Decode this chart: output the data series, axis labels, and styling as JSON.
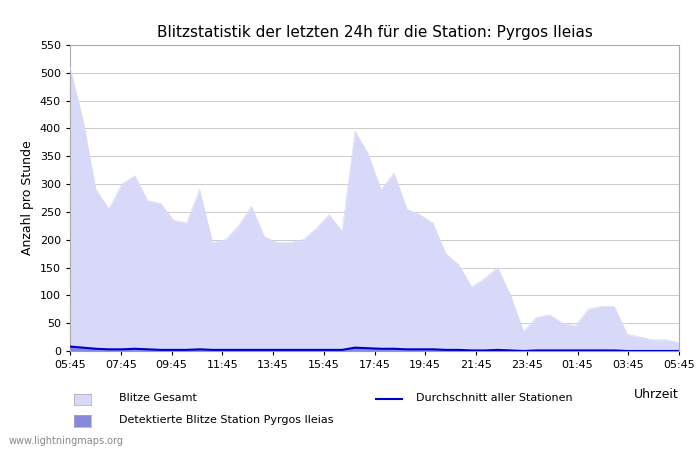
{
  "title": "Blitzstatistik der letzten 24h für die Station: Pyrgos Ileias",
  "xlabel": "Uhrzeit",
  "ylabel": "Anzahl pro Stunde",
  "ylim": [
    0,
    550
  ],
  "yticks": [
    0,
    50,
    100,
    150,
    200,
    250,
    300,
    350,
    400,
    450,
    500,
    550
  ],
  "xtick_labels": [
    "05:45",
    "07:45",
    "09:45",
    "11:45",
    "13:45",
    "15:45",
    "17:45",
    "19:45",
    "21:45",
    "23:45",
    "01:45",
    "03:45",
    "05:45"
  ],
  "background_color": "#ffffff",
  "grid_color": "#cccccc",
  "fill_gesamt_color": "#d8d8f8",
  "fill_station_color": "#8888dd",
  "line_avg_color": "#0000cc",
  "watermark": "www.lightningmaps.org",
  "legend": {
    "blitze_gesamt": "Blitze Gesamt",
    "detektierte": "Detektierte Blitze Station Pyrgos Ileias",
    "durchschnitt": "Durchschnitt aller Stationen"
  },
  "x_indices": [
    0,
    1,
    2,
    3,
    4,
    5,
    6,
    7,
    8,
    9,
    10,
    11,
    12,
    13,
    14,
    15,
    16,
    17,
    18,
    19,
    20,
    21,
    22,
    23,
    24,
    25,
    26,
    27,
    28,
    29,
    30,
    31,
    32,
    33,
    34,
    35,
    36,
    37,
    38,
    39,
    40,
    41,
    42,
    43,
    44,
    45,
    46,
    47
  ],
  "blitze_gesamt": [
    510,
    415,
    290,
    255,
    300,
    315,
    270,
    265,
    235,
    230,
    290,
    195,
    200,
    225,
    260,
    205,
    195,
    195,
    200,
    220,
    245,
    215,
    395,
    355,
    290,
    320,
    255,
    245,
    230,
    175,
    155,
    115,
    130,
    150,
    100,
    35,
    60,
    65,
    50,
    45,
    75,
    80,
    80,
    30,
    25,
    20,
    20,
    15
  ],
  "detektierte_station": [
    10,
    8,
    5,
    4,
    4,
    5,
    4,
    3,
    3,
    3,
    4,
    3,
    3,
    3,
    3,
    3,
    3,
    3,
    3,
    3,
    3,
    3,
    8,
    6,
    5,
    5,
    4,
    4,
    4,
    3,
    3,
    2,
    2,
    3,
    2,
    1,
    1,
    2,
    1,
    1,
    2,
    2,
    2,
    1,
    1,
    1,
    1,
    1
  ],
  "durchschnitt_avg": [
    8,
    6,
    4,
    3,
    3,
    4,
    3,
    2,
    2,
    2,
    3,
    2,
    2,
    2,
    2,
    2,
    2,
    2,
    2,
    2,
    2,
    2,
    6,
    5,
    4,
    4,
    3,
    3,
    3,
    2,
    2,
    1,
    1,
    2,
    1,
    0,
    1,
    1,
    1,
    1,
    1,
    1,
    1,
    0,
    0,
    0,
    0,
    0
  ]
}
